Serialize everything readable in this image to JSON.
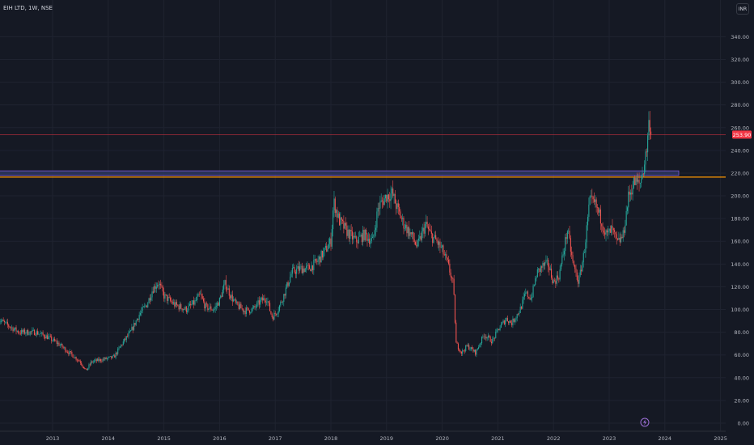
{
  "header": {
    "title": "EIH LTD, 1W, NSE",
    "currency": "INR"
  },
  "price_label": "253.90",
  "flash_icon": "flash-icon",
  "colors": {
    "bg": "#151924",
    "grid": "#1f2330",
    "up": "#26a69a",
    "down": "#ef5350",
    "axis_text": "#b2b5be",
    "price_line": "#f23645",
    "support_band_fill": "#2f3a66",
    "support_band_border": "#7b5bd6",
    "horizontal_line": "#ff9800"
  },
  "chart_data": {
    "type": "candlestick",
    "x_axis": {
      "labels": [
        "2013",
        "2014",
        "2015",
        "2016",
        "2017",
        "2018",
        "2019",
        "2020",
        "2021",
        "2022",
        "2023",
        "2024",
        "2025"
      ]
    },
    "y_axis": {
      "ylim": [
        0,
        350
      ],
      "ticks": [
        0,
        20,
        40,
        60,
        80,
        100,
        120,
        140,
        160,
        180,
        200,
        220,
        240,
        260,
        280,
        300,
        320,
        340
      ],
      "tick_labels": [
        "0.00",
        "20.00",
        "40.00",
        "60.00",
        "80.00",
        "100.00",
        "120.00",
        "140.00",
        "160.00",
        "180.00",
        "200.00",
        "220.00",
        "240.00",
        "260.00",
        "280.00",
        "300.00",
        "320.00",
        "340.00"
      ]
    },
    "last_price": 253.9,
    "horizontal_levels": [
      {
        "kind": "band",
        "from": 218,
        "to": 222,
        "x_start": 2012.0,
        "x_end": 2024.25
      },
      {
        "kind": "line",
        "value": 216.5
      },
      {
        "kind": "price_line",
        "value": 253.9
      }
    ],
    "price_path": [
      [
        2012.0,
        92
      ],
      [
        2012.2,
        86
      ],
      [
        2012.4,
        80
      ],
      [
        2012.7,
        80
      ],
      [
        2012.9,
        76
      ],
      [
        2013.1,
        70
      ],
      [
        2013.3,
        62
      ],
      [
        2013.5,
        54
      ],
      [
        2013.6,
        46
      ],
      [
        2013.7,
        54
      ],
      [
        2013.9,
        56
      ],
      [
        2014.1,
        58
      ],
      [
        2014.25,
        70
      ],
      [
        2014.4,
        80
      ],
      [
        2014.55,
        95
      ],
      [
        2014.7,
        105
      ],
      [
        2014.8,
        118
      ],
      [
        2014.9,
        124
      ],
      [
        2015.0,
        112
      ],
      [
        2015.2,
        104
      ],
      [
        2015.4,
        100
      ],
      [
        2015.55,
        106
      ],
      [
        2015.65,
        113
      ],
      [
        2015.75,
        102
      ],
      [
        2015.9,
        100
      ],
      [
        2016.0,
        108
      ],
      [
        2016.1,
        123
      ],
      [
        2016.2,
        112
      ],
      [
        2016.3,
        104
      ],
      [
        2016.45,
        99
      ],
      [
        2016.6,
        100
      ],
      [
        2016.75,
        108
      ],
      [
        2016.85,
        110
      ],
      [
        2016.9,
        100
      ],
      [
        2016.95,
        93
      ],
      [
        2017.05,
        100
      ],
      [
        2017.15,
        112
      ],
      [
        2017.3,
        133
      ],
      [
        2017.45,
        136
      ],
      [
        2017.6,
        136
      ],
      [
        2017.75,
        142
      ],
      [
        2017.9,
        152
      ],
      [
        2018.0,
        160
      ],
      [
        2018.05,
        195
      ],
      [
        2018.15,
        178
      ],
      [
        2018.3,
        168
      ],
      [
        2018.45,
        160
      ],
      [
        2018.6,
        166
      ],
      [
        2018.75,
        160
      ],
      [
        2018.85,
        190
      ],
      [
        2019.0,
        200
      ],
      [
        2019.1,
        202
      ],
      [
        2019.2,
        188
      ],
      [
        2019.3,
        176
      ],
      [
        2019.45,
        165
      ],
      [
        2019.55,
        155
      ],
      [
        2019.7,
        175
      ],
      [
        2019.8,
        165
      ],
      [
        2019.9,
        160
      ],
      [
        2020.0,
        152
      ],
      [
        2020.1,
        140
      ],
      [
        2020.2,
        122
      ],
      [
        2020.25,
        70
      ],
      [
        2020.35,
        62
      ],
      [
        2020.45,
        68
      ],
      [
        2020.6,
        62
      ],
      [
        2020.75,
        78
      ],
      [
        2020.9,
        72
      ],
      [
        2021.0,
        82
      ],
      [
        2021.15,
        92
      ],
      [
        2021.25,
        88
      ],
      [
        2021.4,
        100
      ],
      [
        2021.5,
        114
      ],
      [
        2021.6,
        110
      ],
      [
        2021.7,
        132
      ],
      [
        2021.8,
        138
      ],
      [
        2021.9,
        140
      ],
      [
        2022.0,
        124
      ],
      [
        2022.1,
        130
      ],
      [
        2022.25,
        170
      ],
      [
        2022.35,
        140
      ],
      [
        2022.45,
        124
      ],
      [
        2022.55,
        150
      ],
      [
        2022.65,
        195
      ],
      [
        2022.75,
        192
      ],
      [
        2022.85,
        180
      ],
      [
        2022.95,
        165
      ],
      [
        2023.05,
        170
      ],
      [
        2023.15,
        158
      ],
      [
        2023.25,
        165
      ],
      [
        2023.35,
        200
      ],
      [
        2023.45,
        212
      ],
      [
        2023.55,
        210
      ],
      [
        2023.62,
        225
      ],
      [
        2023.67,
        240
      ],
      [
        2023.72,
        268
      ],
      [
        2023.76,
        253.9
      ]
    ]
  }
}
